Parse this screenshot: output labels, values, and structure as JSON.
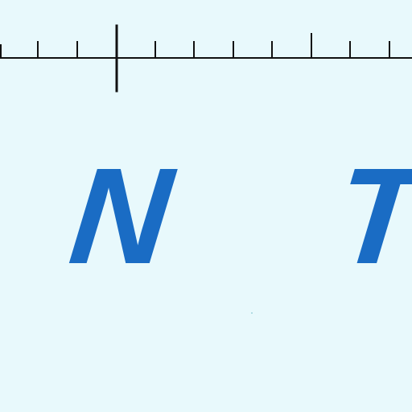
{
  "background_color": "#e8f9fc",
  "ruler": {
    "line_color": "#111111",
    "major_tick_count": 1,
    "minor_tick_count": 10
  },
  "letters": [
    {
      "text": "N",
      "color": "#1a6cc4"
    },
    {
      "text": "T",
      "color": "#1a6cc4"
    }
  ]
}
